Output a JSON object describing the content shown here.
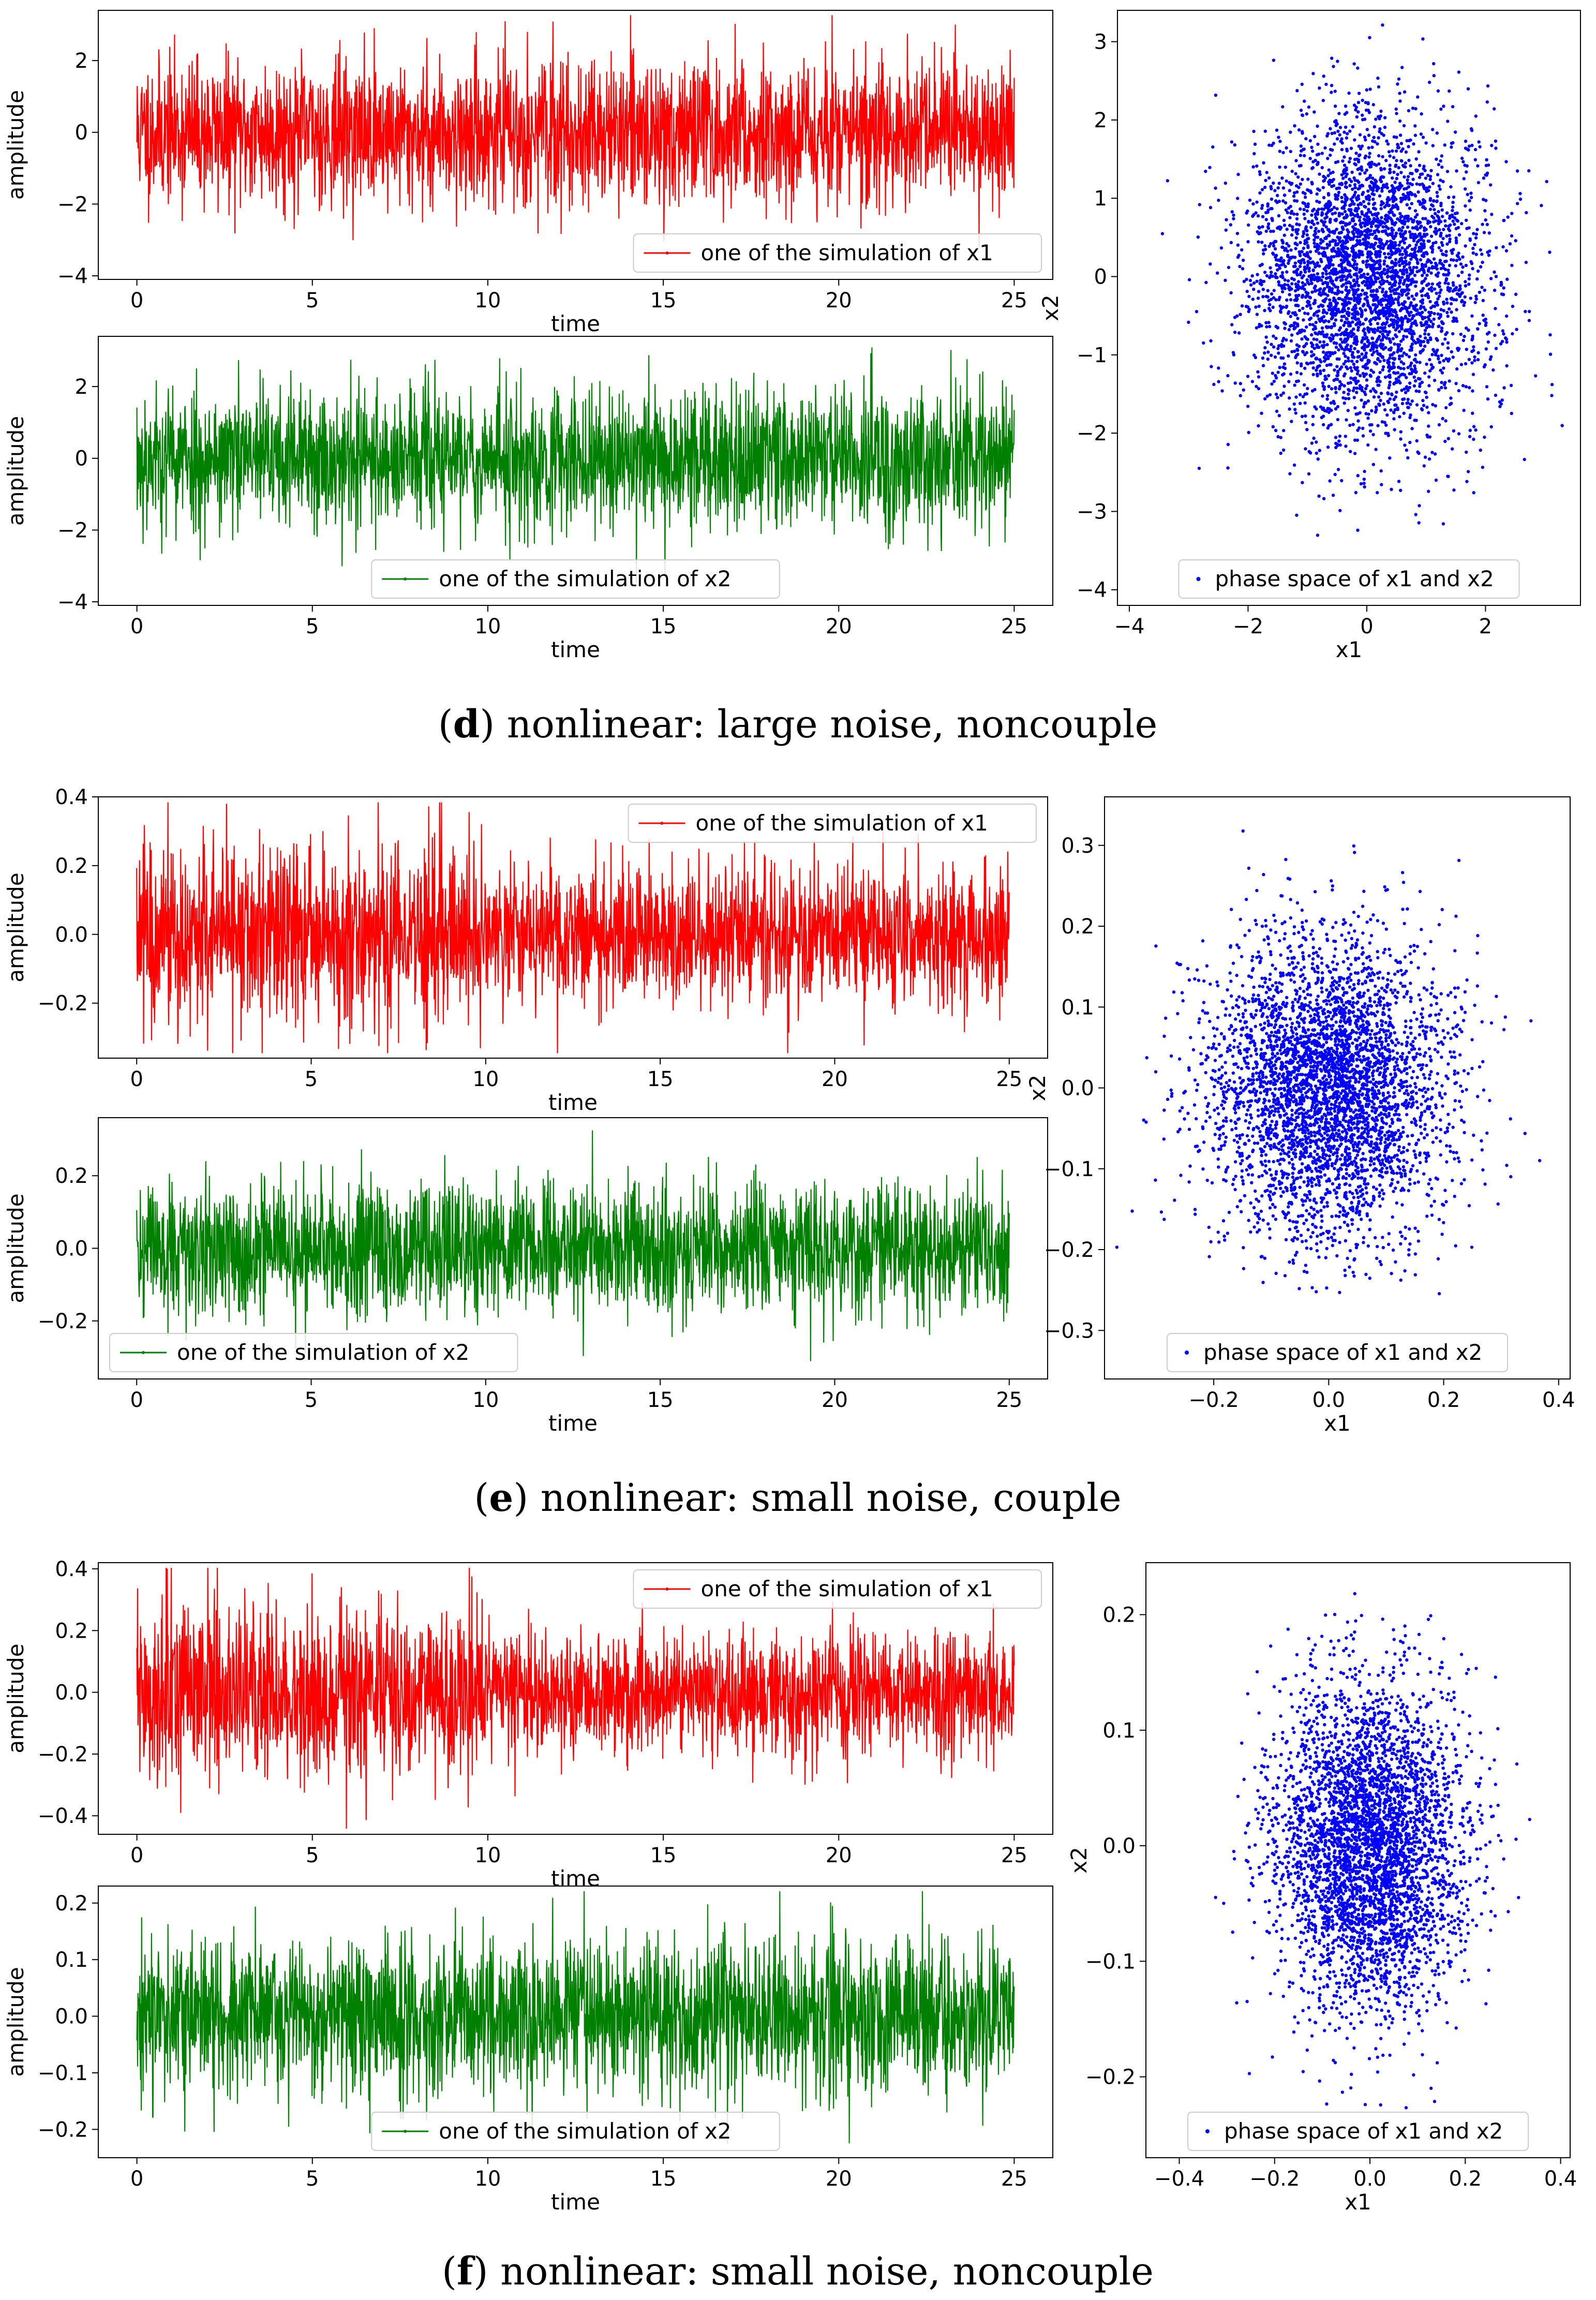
{
  "figure": {
    "panels": [
      {
        "id": "d",
        "caption_letter": "d",
        "caption_text": "nonlinear: large noise, noncouple",
        "x1_chart": {
          "type": "line",
          "series_name": "one of the simulation of x1",
          "color": "#ff0000",
          "xlabel": "time",
          "ylabel": "amplitude",
          "xlim": [
            -1.1,
            26.1
          ],
          "ylim": [
            -4.1,
            3.4
          ],
          "xticks": [
            0,
            5,
            10,
            15,
            20,
            25
          ],
          "yticks": [
            -4,
            -2,
            0,
            2
          ],
          "legend_loc": "lower-right",
          "sigma": 1.0,
          "burst_factor": 1.0
        },
        "x2_chart": {
          "type": "line",
          "series_name": "one of the simulation of x2",
          "color": "#008000",
          "xlabel": "time",
          "ylabel": "amplitude",
          "xlim": [
            -1.1,
            26.1
          ],
          "ylim": [
            -4.1,
            3.4
          ],
          "xticks": [
            0,
            5,
            10,
            15,
            20,
            25
          ],
          "yticks": [
            -4,
            -2,
            0,
            2
          ],
          "legend_loc": "lower-center",
          "sigma": 1.0,
          "burst_factor": 1.0
        },
        "phase_chart": {
          "type": "scatter",
          "series_name": "phase space of x1 and x2",
          "color": "#0000ff",
          "xlabel": "x1",
          "ylabel": "x2",
          "xlim": [
            -4.2,
            3.6
          ],
          "ylim": [
            -4.2,
            3.4
          ],
          "xticks": [
            -4,
            -2,
            0,
            2
          ],
          "yticks": [
            -4,
            -3,
            -2,
            -1,
            0,
            1,
            2,
            3
          ],
          "x_sigma": 1.0,
          "y_sigma": 1.0,
          "legend_loc": "lower-center"
        }
      },
      {
        "id": "e",
        "caption_letter": "e",
        "caption_text": "nonlinear: small noise, couple",
        "x1_chart": {
          "type": "line",
          "series_name": "one of the simulation of x1",
          "color": "#ff0000",
          "xlabel": "time",
          "ylabel": "amplitude",
          "xlim": [
            -1.1,
            26.1
          ],
          "ylim": [
            -0.36,
            0.4
          ],
          "xticks": [
            0,
            5,
            10,
            15,
            20,
            25
          ],
          "yticks": [
            -0.2,
            0.0,
            0.2,
            0.4
          ],
          "legend_loc": "upper-right",
          "sigma": 0.1,
          "burst_factor": 1.35
        },
        "x2_chart": {
          "type": "line",
          "series_name": "one of the simulation of x2",
          "color": "#008000",
          "xlabel": "time",
          "ylabel": "amplitude",
          "xlim": [
            -1.1,
            26.1
          ],
          "ylim": [
            -0.36,
            0.36
          ],
          "xticks": [
            0,
            5,
            10,
            15,
            20,
            25
          ],
          "yticks": [
            -0.2,
            0.0,
            0.2
          ],
          "legend_loc": "lower-left",
          "sigma": 0.09,
          "burst_factor": 1.0
        },
        "phase_chart": {
          "type": "scatter",
          "series_name": "phase space of x1 and x2",
          "color": "#0000ff",
          "xlabel": "x1",
          "ylabel": "x2",
          "xlim": [
            -0.39,
            0.42
          ],
          "ylim": [
            -0.36,
            0.36
          ],
          "xticks": [
            -0.2,
            0.0,
            0.2,
            0.4
          ],
          "yticks": [
            -0.3,
            -0.2,
            -0.1,
            0.0,
            0.1,
            0.2,
            0.3
          ],
          "x_sigma": 0.1,
          "y_sigma": 0.09,
          "legend_loc": "lower-center"
        }
      },
      {
        "id": "f",
        "caption_letter": "f",
        "caption_text": "nonlinear: small noise, noncouple",
        "x1_chart": {
          "type": "line",
          "series_name": "one of the simulation of x1",
          "color": "#ff0000",
          "xlabel": "time",
          "ylabel": "amplitude",
          "xlim": [
            -1.1,
            26.1
          ],
          "ylim": [
            -0.46,
            0.42
          ],
          "xticks": [
            0,
            5,
            10,
            15,
            20,
            25
          ],
          "yticks": [
            -0.4,
            -0.2,
            0.0,
            0.2,
            0.4
          ],
          "legend_loc": "upper-right",
          "sigma": 0.1,
          "burst_factor": 1.35
        },
        "x2_chart": {
          "type": "line",
          "series_name": "one of the simulation of x2",
          "color": "#008000",
          "xlabel": "time",
          "ylabel": "amplitude",
          "xlim": [
            -1.1,
            26.1
          ],
          "ylim": [
            -0.25,
            0.23
          ],
          "xticks": [
            0,
            5,
            10,
            15,
            20,
            25
          ],
          "yticks": [
            -0.2,
            -0.1,
            0.0,
            0.1,
            0.2
          ],
          "legend_loc": "lower-center",
          "sigma": 0.07,
          "burst_factor": 1.0
        },
        "phase_chart": {
          "type": "scatter",
          "series_name": "phase space of x1 and x2",
          "color": "#0000ff",
          "xlabel": "x1",
          "ylabel": "x2",
          "xlim": [
            -0.47,
            0.42
          ],
          "ylim": [
            -0.27,
            0.245
          ],
          "xticks": [
            -0.4,
            -0.2,
            0.0,
            0.2,
            0.4
          ],
          "yticks": [
            -0.2,
            -0.1,
            0.0,
            0.1,
            0.2
          ],
          "x_sigma": 0.1,
          "y_sigma": 0.07,
          "legend_loc": "lower-center"
        }
      }
    ]
  },
  "chart_data": [
    {
      "type": "line",
      "panel": "d",
      "title": "",
      "series": [
        {
          "name": "one of the simulation of x1",
          "color": "#ff0000"
        }
      ],
      "xlabel": "time",
      "ylabel": "amplitude",
      "xlim": [
        -1.1,
        26.1
      ],
      "ylim": [
        -4.1,
        3.4
      ],
      "x_range": [
        0,
        25
      ],
      "value_range": [
        -3.9,
        3.2
      ]
    },
    {
      "type": "line",
      "panel": "d",
      "title": "",
      "series": [
        {
          "name": "one of the simulation of x2",
          "color": "#008000"
        }
      ],
      "xlabel": "time",
      "ylabel": "amplitude",
      "xlim": [
        -1.1,
        26.1
      ],
      "ylim": [
        -4.1,
        3.4
      ],
      "x_range": [
        0,
        25
      ],
      "value_range": [
        -4.0,
        3.2
      ]
    },
    {
      "type": "scatter",
      "panel": "d",
      "title": "",
      "series": [
        {
          "name": "phase space of x1 and x2",
          "color": "#0000ff"
        }
      ],
      "xlabel": "x1",
      "ylabel": "x2",
      "xlim": [
        -4.2,
        3.6
      ],
      "ylim": [
        -4.2,
        3.4
      ]
    },
    {
      "type": "line",
      "panel": "e",
      "title": "",
      "series": [
        {
          "name": "one of the simulation of x1",
          "color": "#ff0000"
        }
      ],
      "xlabel": "time",
      "ylabel": "amplitude",
      "xlim": [
        -1.1,
        26.1
      ],
      "ylim": [
        -0.36,
        0.4
      ],
      "x_range": [
        0,
        25
      ],
      "value_range": [
        -0.34,
        0.37
      ]
    },
    {
      "type": "line",
      "panel": "e",
      "title": "",
      "series": [
        {
          "name": "one of the simulation of x2",
          "color": "#008000"
        }
      ],
      "xlabel": "time",
      "ylabel": "amplitude",
      "xlim": [
        -1.1,
        26.1
      ],
      "ylim": [
        -0.36,
        0.36
      ],
      "x_range": [
        0,
        25
      ],
      "value_range": [
        -0.34,
        0.34
      ]
    },
    {
      "type": "scatter",
      "panel": "e",
      "title": "",
      "series": [
        {
          "name": "phase space of x1 and x2",
          "color": "#0000ff"
        }
      ],
      "xlabel": "x1",
      "ylabel": "x2",
      "xlim": [
        -0.39,
        0.42
      ],
      "ylim": [
        -0.36,
        0.36
      ]
    },
    {
      "type": "line",
      "panel": "f",
      "title": "",
      "series": [
        {
          "name": "one of the simulation of x1",
          "color": "#ff0000"
        }
      ],
      "xlabel": "time",
      "ylabel": "amplitude",
      "xlim": [
        -1.1,
        26.1
      ],
      "ylim": [
        -0.46,
        0.42
      ],
      "x_range": [
        0,
        25
      ],
      "value_range": [
        -0.43,
        0.4
      ]
    },
    {
      "type": "line",
      "panel": "f",
      "title": "",
      "series": [
        {
          "name": "one of the simulation of x2",
          "color": "#008000"
        }
      ],
      "xlabel": "time",
      "ylabel": "amplitude",
      "xlim": [
        -1.1,
        26.1
      ],
      "ylim": [
        -0.25,
        0.23
      ],
      "x_range": [
        0,
        25
      ],
      "value_range": [
        -0.22,
        0.22
      ]
    },
    {
      "type": "scatter",
      "panel": "f",
      "title": "",
      "series": [
        {
          "name": "phase space of x1 and x2",
          "color": "#0000ff"
        }
      ],
      "xlabel": "x1",
      "ylabel": "x2",
      "xlim": [
        -0.47,
        0.42
      ],
      "ylim": [
        -0.27,
        0.245
      ]
    }
  ]
}
